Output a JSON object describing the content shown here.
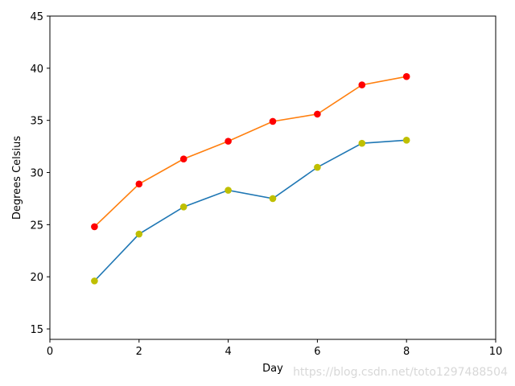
{
  "chart_data": {
    "type": "line",
    "title": "",
    "xlabel": "Day",
    "ylabel": "Degrees Celsius",
    "xlim": [
      0,
      10
    ],
    "ylim": [
      14,
      45
    ],
    "xticks": [
      0,
      2,
      4,
      6,
      8,
      10
    ],
    "yticks": [
      15,
      20,
      25,
      30,
      35,
      40,
      45
    ],
    "grid": false,
    "legend": "none",
    "x": [
      1,
      2,
      3,
      4,
      5,
      6,
      7,
      8
    ],
    "series": [
      {
        "values": [
          19.6,
          24.1,
          26.7,
          28.3,
          27.5,
          30.5,
          32.8,
          33.1
        ],
        "line_color": "#1f77b4",
        "marker_color": "#bfbf00"
      },
      {
        "values": [
          24.8,
          28.9,
          31.3,
          33.0,
          34.9,
          35.6,
          38.4,
          39.2
        ],
        "line_color": "#ff7f0e",
        "marker_color": "#ff0000"
      }
    ]
  },
  "watermark": "https://blog.csdn.net/toto1297488504"
}
